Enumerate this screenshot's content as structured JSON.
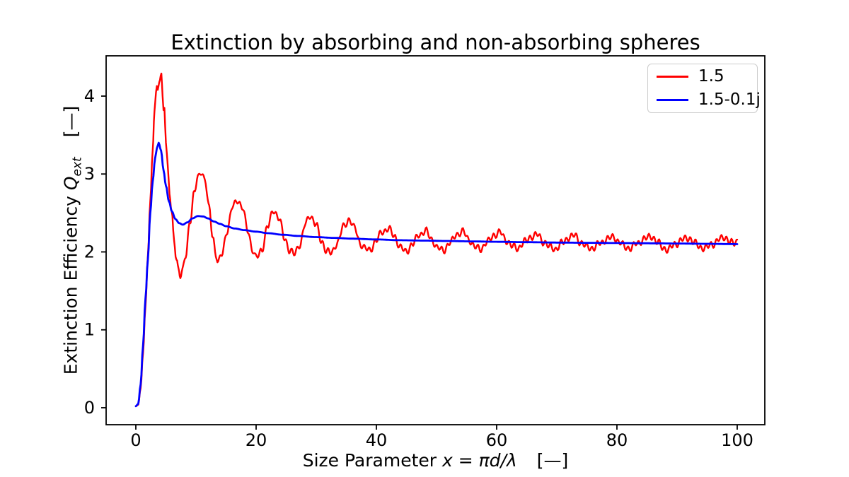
{
  "chart_data": {
    "type": "line",
    "title": "Extinction by absorbing and non-absorbing spheres",
    "xlabel": "Size Parameter x = πd/λ   [—]",
    "ylabel": "Extinction Efficiency Q_ext   [—]",
    "xlabel_parts": {
      "prefix": "Size Parameter ",
      "math": "x = πd/λ",
      "unit": "[—]"
    },
    "ylabel_parts": {
      "prefix": "Extinction Efficiency ",
      "symbol": "Q",
      "subscript": "ext",
      "unit": "[—]"
    },
    "xlim": [
      -4.94,
      104.59
    ],
    "ylim": [
      -0.218,
      4.517
    ],
    "xticks": [
      0,
      20,
      40,
      60,
      80,
      100
    ],
    "yticks": [
      0,
      1,
      2,
      3,
      4
    ],
    "grid": false,
    "legend_position": "upper right",
    "series": [
      {
        "name": "1.5",
        "color": "#ff0000",
        "ripple": {
          "start": 4.5,
          "fade": 1.0,
          "components": [
            [
              0.035,
              7.3,
              0.8
            ],
            [
              0.018,
              3.1,
              2.0
            ]
          ]
        },
        "points": [
          [
            0,
            0.02
          ],
          [
            0.4,
            0.04
          ],
          [
            0.8,
            0.25
          ],
          [
            1.2,
            0.7
          ],
          [
            1.6,
            1.3
          ],
          [
            2.0,
            1.95
          ],
          [
            2.4,
            2.65
          ],
          [
            2.8,
            3.3
          ],
          [
            3.1,
            3.8
          ],
          [
            3.35,
            4.05
          ],
          [
            3.5,
            4.13
          ],
          [
            3.65,
            4.08
          ],
          [
            3.9,
            4.18
          ],
          [
            4.25,
            4.29
          ],
          [
            4.45,
            4.0
          ],
          [
            4.6,
            3.82
          ],
          [
            4.75,
            3.86
          ],
          [
            5.0,
            3.42
          ],
          [
            5.3,
            3.1
          ],
          [
            5.6,
            2.76
          ],
          [
            5.95,
            2.5
          ],
          [
            6.35,
            2.15
          ],
          [
            6.75,
            1.92
          ],
          [
            7.1,
            1.78
          ],
          [
            7.4,
            1.7
          ],
          [
            7.75,
            1.75
          ],
          [
            8.3,
            1.95
          ],
          [
            9.0,
            2.4
          ],
          [
            9.7,
            2.75
          ],
          [
            10.3,
            2.95
          ],
          [
            10.9,
            3.04
          ],
          [
            11.5,
            2.92
          ],
          [
            12.2,
            2.55
          ],
          [
            12.8,
            2.2
          ],
          [
            13.3,
            1.97
          ],
          [
            13.7,
            1.86
          ],
          [
            14.3,
            1.97
          ],
          [
            15.2,
            2.28
          ],
          [
            16.1,
            2.58
          ],
          [
            16.9,
            2.67
          ],
          [
            17.7,
            2.57
          ],
          [
            18.6,
            2.28
          ],
          [
            19.4,
            2.03
          ],
          [
            20.0,
            1.92
          ],
          [
            20.9,
            2.02
          ],
          [
            21.9,
            2.32
          ],
          [
            22.9,
            2.54
          ],
          [
            23.8,
            2.43
          ],
          [
            24.7,
            2.18
          ],
          [
            25.6,
            2.02
          ],
          [
            26.3,
            1.97
          ],
          [
            27.3,
            2.1
          ],
          [
            28.2,
            2.36
          ],
          [
            29.0,
            2.47
          ],
          [
            29.9,
            2.36
          ],
          [
            30.9,
            2.13
          ],
          [
            31.8,
            2.01
          ],
          [
            32.5,
            1.98
          ],
          [
            33.5,
            2.12
          ],
          [
            34.5,
            2.32
          ],
          [
            35.5,
            2.42
          ],
          [
            36.4,
            2.3
          ],
          [
            37.4,
            2.1
          ],
          [
            38.2,
            2.04
          ],
          [
            38.9,
            2.02
          ],
          [
            39.9,
            2.14
          ],
          [
            41.0,
            2.26
          ],
          [
            42.0,
            2.3
          ],
          [
            43.0,
            2.2
          ],
          [
            44.0,
            2.06
          ],
          [
            44.9,
            2.0
          ],
          [
            46.0,
            2.1
          ],
          [
            47.1,
            2.22
          ],
          [
            48.2,
            2.27
          ],
          [
            49.2,
            2.16
          ],
          [
            50.2,
            2.05
          ],
          [
            51.1,
            2.02
          ],
          [
            52.3,
            2.12
          ],
          [
            53.4,
            2.23
          ],
          [
            54.4,
            2.26
          ],
          [
            55.4,
            2.16
          ],
          [
            56.4,
            2.06
          ],
          [
            57.3,
            2.04
          ],
          [
            58.5,
            2.13
          ],
          [
            59.6,
            2.22
          ],
          [
            60.6,
            2.25
          ],
          [
            61.6,
            2.15
          ],
          [
            62.6,
            2.07
          ],
          [
            63.5,
            2.05
          ],
          [
            64.7,
            2.13
          ],
          [
            65.8,
            2.2
          ],
          [
            66.8,
            2.22
          ],
          [
            67.8,
            2.13
          ],
          [
            68.9,
            2.06
          ],
          [
            69.8,
            2.04
          ],
          [
            71.0,
            2.12
          ],
          [
            72.0,
            2.19
          ],
          [
            73.0,
            2.21
          ],
          [
            74.0,
            2.12
          ],
          [
            75.1,
            2.06
          ],
          [
            76.0,
            2.05
          ],
          [
            77.2,
            2.11
          ],
          [
            78.4,
            2.17
          ],
          [
            79.5,
            2.19
          ],
          [
            80.5,
            2.12
          ],
          [
            81.4,
            2.06
          ],
          [
            82.2,
            2.05
          ],
          [
            83.4,
            2.11
          ],
          [
            84.6,
            2.17
          ],
          [
            85.8,
            2.2
          ],
          [
            86.8,
            2.12
          ],
          [
            87.7,
            2.05
          ],
          [
            88.5,
            2.03
          ],
          [
            89.7,
            2.1
          ],
          [
            90.9,
            2.16
          ],
          [
            92.0,
            2.18
          ],
          [
            93.0,
            2.11
          ],
          [
            93.9,
            2.06
          ],
          [
            94.7,
            2.05
          ],
          [
            95.9,
            2.1
          ],
          [
            97.0,
            2.16
          ],
          [
            98.0,
            2.19
          ],
          [
            98.8,
            2.13
          ],
          [
            99.4,
            2.1
          ],
          [
            100,
            2.14
          ]
        ]
      },
      {
        "name": "1.5-0.1j",
        "color": "#0000ff",
        "points": [
          [
            0,
            0.02
          ],
          [
            0.4,
            0.05
          ],
          [
            0.8,
            0.3
          ],
          [
            1.2,
            0.8
          ],
          [
            1.6,
            1.4
          ],
          [
            2.0,
            1.9
          ],
          [
            2.4,
            2.5
          ],
          [
            2.8,
            2.9
          ],
          [
            3.2,
            3.2
          ],
          [
            3.5,
            3.33
          ],
          [
            3.8,
            3.4
          ],
          [
            4.2,
            3.3
          ],
          [
            4.6,
            3.05
          ],
          [
            5.0,
            2.85
          ],
          [
            5.5,
            2.65
          ],
          [
            6.0,
            2.52
          ],
          [
            6.6,
            2.42
          ],
          [
            7.2,
            2.37
          ],
          [
            7.8,
            2.35
          ],
          [
            8.6,
            2.38
          ],
          [
            9.4,
            2.43
          ],
          [
            10.3,
            2.46
          ],
          [
            11.2,
            2.455
          ],
          [
            12.0,
            2.43
          ],
          [
            13.0,
            2.39
          ],
          [
            14.0,
            2.36
          ],
          [
            15.0,
            2.33
          ],
          [
            16.5,
            2.3
          ],
          [
            18.0,
            2.28
          ],
          [
            20.0,
            2.26
          ],
          [
            22.0,
            2.24
          ],
          [
            24.5,
            2.22
          ],
          [
            27.0,
            2.205
          ],
          [
            30.0,
            2.19
          ],
          [
            33.0,
            2.18
          ],
          [
            36.0,
            2.17
          ],
          [
            40.0,
            2.16
          ],
          [
            44.0,
            2.15
          ],
          [
            48.0,
            2.145
          ],
          [
            52.0,
            2.14
          ],
          [
            56.0,
            2.135
          ],
          [
            60.0,
            2.13
          ],
          [
            65.0,
            2.125
          ],
          [
            70.0,
            2.12
          ],
          [
            75.0,
            2.117
          ],
          [
            80.0,
            2.114
          ],
          [
            85.0,
            2.111
          ],
          [
            90.0,
            2.108
          ],
          [
            95.0,
            2.104
          ],
          [
            100.0,
            2.1
          ]
        ]
      }
    ]
  }
}
